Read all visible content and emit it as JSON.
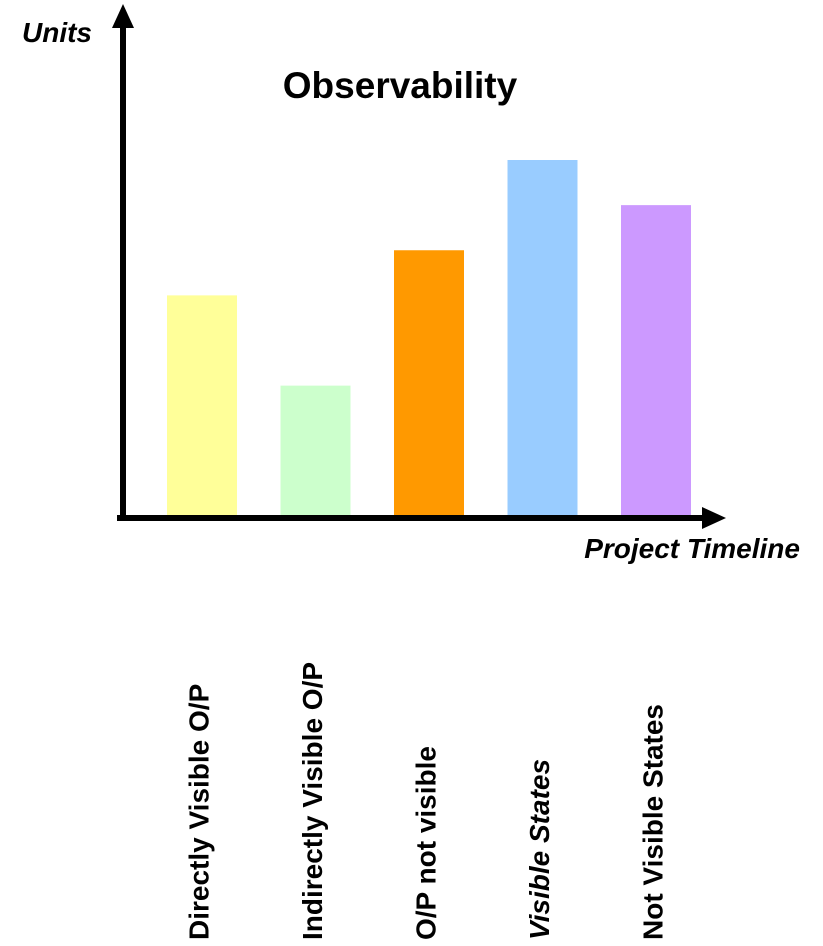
{
  "chart_data": {
    "type": "bar",
    "title": "Observability",
    "xlabel": "Project Timeline",
    "ylabel": "Units",
    "categories": [
      "Directly Visible O/P",
      "Indirectly Visible O/P",
      "O/P not visible",
      "Visible States",
      "Not Visible States"
    ],
    "italic_categories": [
      "Visible States"
    ],
    "values": [
      5,
      3,
      6,
      8,
      7
    ],
    "colors": [
      "#FFFF99",
      "#CCFFCC",
      "#FF9900",
      "#99CCFF",
      "#CC99FF"
    ],
    "axis_color": "#000000",
    "ylim": [
      0,
      8
    ],
    "grid": false,
    "legend": "none"
  }
}
